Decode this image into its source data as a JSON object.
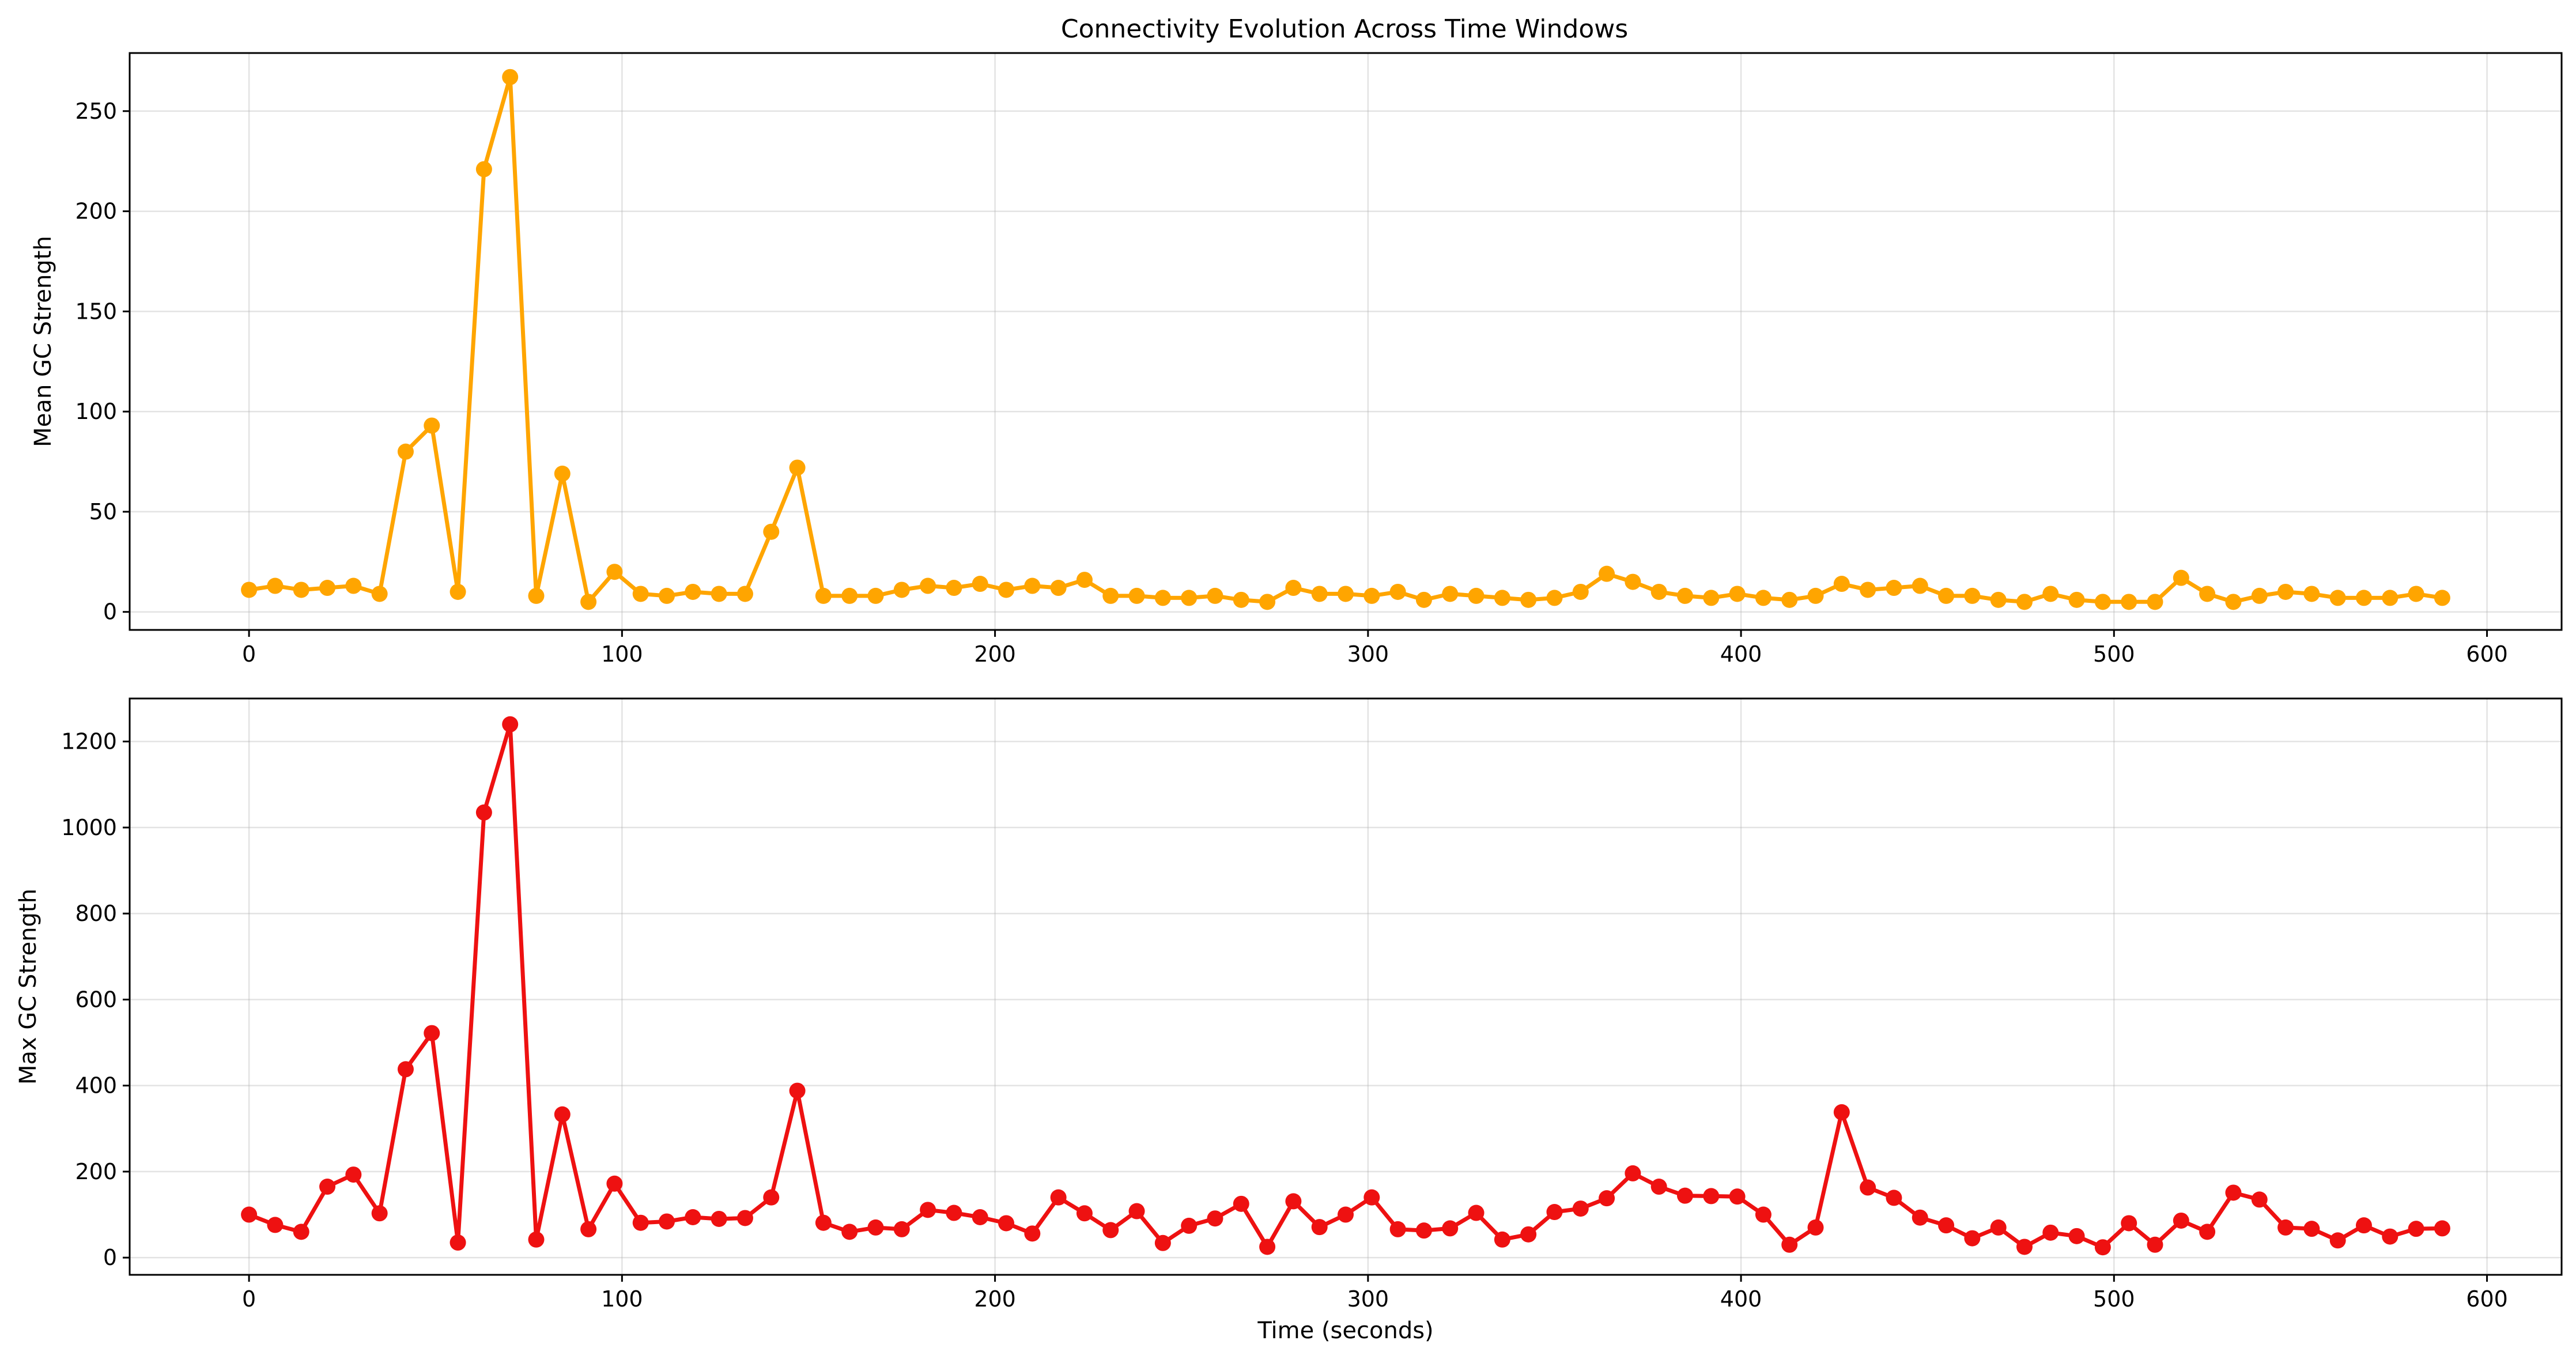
{
  "chart_data": [
    {
      "type": "line",
      "title": "Connectivity Evolution Across Time Windows",
      "xlabel": "",
      "ylabel": "Mean GC Strength",
      "xlim": [
        -32,
        620
      ],
      "ylim": [
        -9,
        279
      ],
      "xticks": [
        0,
        100,
        200,
        300,
        400,
        500,
        600
      ],
      "yticks": [
        0,
        50,
        100,
        150,
        200,
        250
      ],
      "grid": true,
      "color": "#FFA500",
      "marker": "circle",
      "series": [
        {
          "x": [
            0,
            7,
            14,
            21,
            28,
            35,
            42,
            49,
            56,
            63,
            70,
            77,
            84,
            91,
            98,
            105,
            112,
            119,
            126,
            133,
            140,
            147,
            154,
            161,
            168,
            175,
            182,
            189,
            196,
            203,
            210,
            217,
            224,
            231,
            238,
            245,
            252,
            259,
            266,
            273,
            280,
            287,
            294,
            301,
            308,
            315,
            322,
            329,
            336,
            343,
            350,
            357,
            364,
            371,
            378,
            385,
            392,
            399,
            406,
            413,
            420,
            427,
            434,
            441,
            448,
            455,
            462,
            469,
            476,
            483,
            490,
            497,
            504,
            511,
            518,
            525,
            532,
            539,
            546,
            553,
            560,
            567,
            574,
            581,
            588
          ],
          "y": [
            11,
            13,
            11,
            12,
            13,
            9,
            80,
            93,
            10,
            221,
            267,
            8,
            69,
            5,
            20,
            9,
            8,
            10,
            9,
            9,
            40,
            72,
            8,
            8,
            8,
            11,
            13,
            12,
            14,
            11,
            13,
            12,
            16,
            8,
            8,
            7,
            7,
            8,
            6,
            5,
            12,
            9,
            9,
            8,
            10,
            6,
            9,
            8,
            7,
            6,
            7,
            10,
            19,
            15,
            10,
            8,
            7,
            9,
            7,
            6,
            8,
            14,
            11,
            12,
            13,
            8,
            8,
            6,
            5,
            9,
            6,
            5,
            5,
            5,
            17,
            9,
            5,
            8,
            10,
            9,
            7,
            7,
            7,
            9,
            7
          ]
        }
      ]
    },
    {
      "type": "line",
      "title": "",
      "xlabel": "Time (seconds)",
      "ylabel": "Max GC Strength",
      "xlim": [
        -32,
        620
      ],
      "ylim": [
        -40,
        1300
      ],
      "xticks": [
        0,
        100,
        200,
        300,
        400,
        500,
        600
      ],
      "yticks": [
        0,
        200,
        400,
        600,
        800,
        1000,
        1200
      ],
      "grid": true,
      "color": "#EE1111",
      "marker": "circle",
      "series": [
        {
          "x": [
            0,
            7,
            14,
            21,
            28,
            35,
            42,
            49,
            56,
            63,
            70,
            77,
            84,
            91,
            98,
            105,
            112,
            119,
            126,
            133,
            140,
            147,
            154,
            161,
            168,
            175,
            182,
            189,
            196,
            203,
            210,
            217,
            224,
            231,
            238,
            245,
            252,
            259,
            266,
            273,
            280,
            287,
            294,
            301,
            308,
            315,
            322,
            329,
            336,
            343,
            350,
            357,
            364,
            371,
            378,
            385,
            392,
            399,
            406,
            413,
            420,
            427,
            434,
            441,
            448,
            455,
            462,
            469,
            476,
            483,
            490,
            497,
            504,
            511,
            518,
            525,
            532,
            539,
            546,
            553,
            560,
            567,
            574,
            581,
            588
          ],
          "y": [
            100,
            76,
            60,
            165,
            193,
            103,
            438,
            522,
            35,
            1035,
            1240,
            42,
            333,
            66,
            172,
            81,
            84,
            94,
            90,
            92,
            140,
            388,
            81,
            60,
            70,
            66,
            111,
            104,
            94,
            80,
            56,
            140,
            103,
            64,
            108,
            34,
            74,
            91,
            125,
            25,
            131,
            71,
            100,
            140,
            66,
            63,
            68,
            104,
            42,
            54,
            106,
            114,
            138,
            196,
            165,
            144,
            143,
            142,
            100,
            30,
            70,
            338,
            163,
            139,
            93,
            75,
            45,
            70,
            25,
            58,
            50,
            24,
            80,
            30,
            86,
            60,
            151,
            135,
            70,
            67,
            40,
            75,
            49,
            67,
            68
          ]
        }
      ]
    }
  ]
}
